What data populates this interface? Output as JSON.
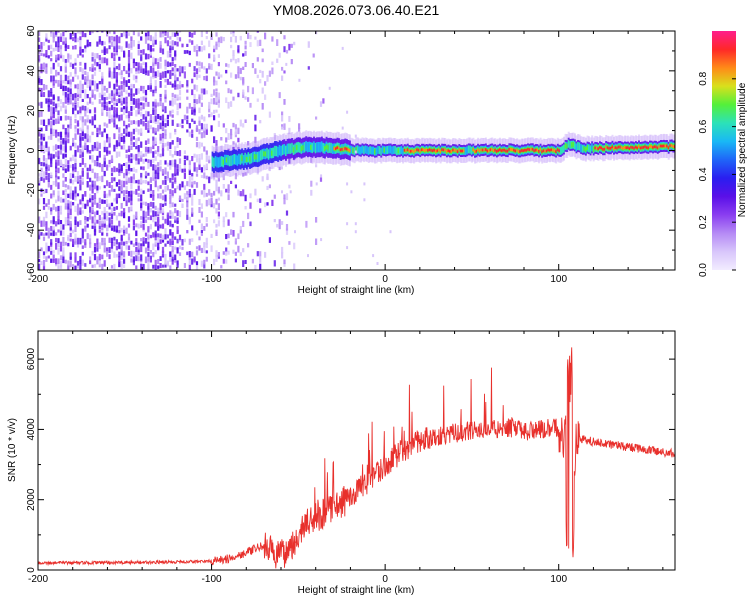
{
  "title": "YM08.2026.073.06.40.E21",
  "colors": {
    "plot_frame": "#000000",
    "snr_line": "#e8302c",
    "colormap": [
      "#f2ecff",
      "#d8c6fb",
      "#b58af5",
      "#8a3ef0",
      "#5a10e8",
      "#2a1ef0",
      "#1f66f8",
      "#19b8f5",
      "#2ce2b8",
      "#54f03a",
      "#d8e01c",
      "#ff8a18",
      "#ff2828",
      "#ff1e8c"
    ]
  },
  "chart_data": [
    {
      "type": "heatmap",
      "title": "YM08.2026.073.06.40.E21",
      "xlabel": "Height of straight line (km)",
      "ylabel": "Frequency (Hz)",
      "xlim": [
        -200,
        167
      ],
      "ylim": [
        -60,
        60
      ],
      "xticks": [
        "-200",
        "-100",
        "0",
        "100"
      ],
      "yticks": [
        "60",
        "40",
        "20",
        "0",
        "-20",
        "-40",
        "-60"
      ],
      "colorbar": {
        "label": "Normalized spectral amplitude",
        "range": [
          0,
          1
        ],
        "ticks": [
          "0.0",
          "0.2",
          "0.4",
          "0.6",
          "0.8"
        ]
      },
      "description_points": {
        "noise_region_x": [
          -200,
          -55
        ],
        "signal_start_x": -100,
        "signal_center_freq": [
          {
            "x": -100,
            "f": -6
          },
          {
            "x": -80,
            "f": -4
          },
          {
            "x": -60,
            "f": 0
          },
          {
            "x": -45,
            "f": 2
          },
          {
            "x": -30,
            "f": 1
          },
          {
            "x": -15,
            "f": 0
          },
          {
            "x": 0,
            "f": 0
          },
          {
            "x": 50,
            "f": 0
          },
          {
            "x": 100,
            "f": 0
          },
          {
            "x": 105,
            "f": 3
          },
          {
            "x": 115,
            "f": 1
          },
          {
            "x": 167,
            "f": 2
          }
        ],
        "strong_segments_x": [
          [
            -30,
            -20
          ],
          [
            10,
            45
          ],
          [
            50,
            100
          ],
          [
            120,
            167
          ]
        ]
      }
    },
    {
      "type": "line",
      "xlabel": "Height of straight line (km)",
      "ylabel": "SNR (10 * v/v)",
      "xlim": [
        -200,
        167
      ],
      "ylim": [
        0,
        6800
      ],
      "xticks": [
        "-200",
        "-100",
        "0",
        "100"
      ],
      "yticks": [
        "0",
        "2000",
        "4000",
        "6000"
      ],
      "series": [
        {
          "name": "SNR",
          "x": [
            -200,
            -150,
            -120,
            -100,
            -90,
            -80,
            -70,
            -65,
            -60,
            -55,
            -50,
            -45,
            -40,
            -35,
            -30,
            -25,
            -20,
            -15,
            -10,
            -5,
            0,
            5,
            10,
            20,
            30,
            40,
            50,
            60,
            70,
            80,
            90,
            100,
            104,
            106,
            108,
            110,
            115,
            120,
            140,
            167
          ],
          "values": [
            200,
            210,
            230,
            250,
            320,
            500,
            700,
            500,
            400,
            650,
            1000,
            1300,
            1500,
            1600,
            1800,
            1900,
            2100,
            2300,
            2500,
            2700,
            3000,
            3200,
            3400,
            3700,
            3800,
            3900,
            3950,
            4000,
            4050,
            3950,
            4000,
            4050,
            3800,
            3600,
            800,
            3800,
            3700,
            3650,
            3500,
            3300
          ]
        }
      ]
    }
  ]
}
